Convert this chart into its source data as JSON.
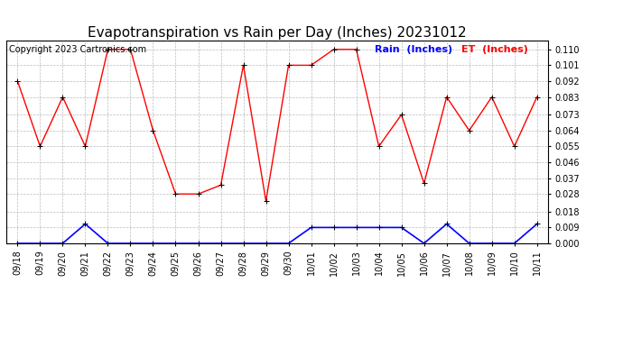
{
  "title": "Evapotranspiration vs Rain per Day (Inches) 20231012",
  "copyright": "Copyright 2023 Cartronics.com",
  "legend_rain": "Rain  (Inches)",
  "legend_et": "ET  (Inches)",
  "dates": [
    "09/18",
    "09/19",
    "09/20",
    "09/21",
    "09/22",
    "09/23",
    "09/24",
    "09/25",
    "09/26",
    "09/27",
    "09/28",
    "09/29",
    "09/30",
    "10/01",
    "10/02",
    "10/03",
    "10/04",
    "10/05",
    "10/06",
    "10/07",
    "10/08",
    "10/09",
    "10/10",
    "10/11"
  ],
  "et_values": [
    0.092,
    0.055,
    0.083,
    0.055,
    0.11,
    0.11,
    0.064,
    0.028,
    0.028,
    0.033,
    0.101,
    0.024,
    0.101,
    0.101,
    0.11,
    0.11,
    0.055,
    0.073,
    0.034,
    0.083,
    0.064,
    0.083,
    0.055,
    0.083
  ],
  "rain_values": [
    0.0,
    0.0,
    0.0,
    0.011,
    0.0,
    0.0,
    0.0,
    0.0,
    0.0,
    0.0,
    0.0,
    0.0,
    0.0,
    0.009,
    0.009,
    0.009,
    0.009,
    0.009,
    0.0,
    0.011,
    0.0,
    0.0,
    0.0,
    0.011
  ],
  "et_color": "red",
  "rain_color": "blue",
  "background_color": "white",
  "grid_color": "#bbbbbb",
  "ylim_min": 0.0,
  "ylim_max": 0.115,
  "yticks": [
    0.0,
    0.009,
    0.018,
    0.028,
    0.037,
    0.046,
    0.055,
    0.064,
    0.073,
    0.083,
    0.092,
    0.101,
    0.11
  ],
  "title_fontsize": 11,
  "copyright_fontsize": 7,
  "legend_fontsize": 8,
  "tick_fontsize": 7,
  "fig_width": 6.9,
  "fig_height": 3.75,
  "fig_dpi": 100
}
